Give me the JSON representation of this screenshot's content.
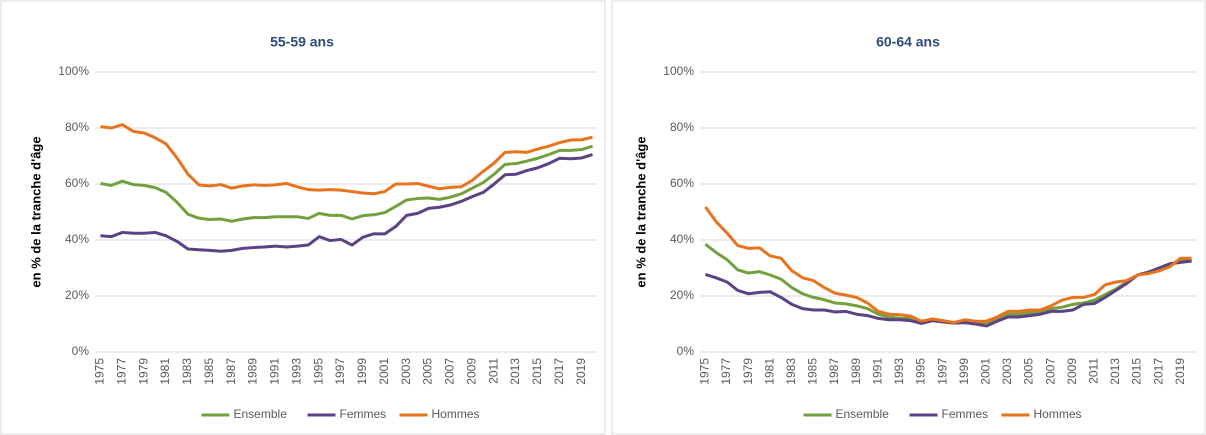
{
  "chart_data": [
    {
      "type": "line",
      "title": "55-59 ans",
      "ylabel": "en % de la tranche d'âge",
      "x": [
        1975,
        1976,
        1977,
        1978,
        1979,
        1980,
        1981,
        1982,
        1983,
        1984,
        1985,
        1986,
        1987,
        1988,
        1989,
        1990,
        1991,
        1992,
        1993,
        1994,
        1995,
        1996,
        1997,
        1998,
        1999,
        2000,
        2001,
        2002,
        2003,
        2004,
        2005,
        2006,
        2007,
        2008,
        2009,
        2010,
        2011,
        2012,
        2013,
        2014,
        2015,
        2016,
        2017,
        2018,
        2019,
        2020
      ],
      "xlim": [
        1975,
        2020
      ],
      "xticks": [
        1975,
        1977,
        1979,
        1981,
        1983,
        1985,
        1987,
        1989,
        1991,
        1993,
        1995,
        1997,
        1999,
        2001,
        2003,
        2005,
        2007,
        2009,
        2011,
        2013,
        2015,
        2017,
        2019
      ],
      "ylim": [
        0,
        100
      ],
      "yticks": [
        {
          "value": 0,
          "label": "0%"
        },
        {
          "value": 20,
          "label": "20%"
        },
        {
          "value": 40,
          "label": "40%"
        },
        {
          "value": 60,
          "label": "60%"
        },
        {
          "value": 80,
          "label": "80%"
        },
        {
          "value": 100,
          "label": "100%"
        }
      ],
      "grid": true,
      "legend": "bottom",
      "series": [
        {
          "name": "Ensemble",
          "color": "#71a03d",
          "values": [
            60.2,
            59.5,
            61,
            59.8,
            59.5,
            58.7,
            57,
            53.5,
            49.2,
            47.8,
            47.3,
            47.5,
            46.7,
            47.5,
            48,
            48,
            48.3,
            48.3,
            48.3,
            47.7,
            49.5,
            48.8,
            48.8,
            47.5,
            48.7,
            49,
            49.8,
            52,
            54.3,
            54.8,
            55,
            54.5,
            55.3,
            56.5,
            58.5,
            60.5,
            63.5,
            67,
            67.3,
            68.2,
            69.2,
            70.5,
            72,
            72,
            72.3,
            73.5
          ]
        },
        {
          "name": "Femmes",
          "color": "#5b4284",
          "values": [
            41.5,
            41.2,
            42.7,
            42.4,
            42.4,
            42.7,
            41.5,
            39.5,
            36.8,
            36.5,
            36.3,
            36,
            36.3,
            37,
            37.3,
            37.5,
            37.8,
            37.5,
            37.8,
            38.2,
            41.2,
            39.8,
            40.2,
            38.2,
            41,
            42.2,
            42.2,
            44.8,
            48.8,
            49.5,
            51.3,
            51.7,
            52.5,
            53.8,
            55.5,
            57,
            60,
            63.3,
            63.5,
            64.8,
            65.8,
            67.3,
            69.2,
            69,
            69.3,
            70.5
          ]
        },
        {
          "name": "Hommes",
          "color": "#e8731f",
          "values": [
            80.5,
            80,
            81.2,
            78.8,
            78.2,
            76.5,
            74.3,
            69.3,
            63.5,
            59.7,
            59.3,
            59.8,
            58.5,
            59.3,
            59.7,
            59.5,
            59.7,
            60.2,
            59,
            58,
            57.8,
            58,
            57.8,
            57.3,
            56.8,
            56.5,
            57.3,
            60,
            60,
            60.2,
            59.2,
            58.3,
            58.8,
            59,
            61.3,
            64.5,
            67.5,
            71.3,
            71.5,
            71.3,
            72.5,
            73.5,
            74.8,
            75.7,
            75.8,
            76.7
          ]
        }
      ]
    },
    {
      "type": "line",
      "title": "60-64 ans",
      "ylabel": "en % de la tranche d'âge",
      "x": [
        1975,
        1976,
        1977,
        1978,
        1979,
        1980,
        1981,
        1982,
        1983,
        1984,
        1985,
        1986,
        1987,
        1988,
        1989,
        1990,
        1991,
        1992,
        1993,
        1994,
        1995,
        1996,
        1997,
        1998,
        1999,
        2000,
        2001,
        2002,
        2003,
        2004,
        2005,
        2006,
        2007,
        2008,
        2009,
        2010,
        2011,
        2012,
        2013,
        2014,
        2015,
        2016,
        2017,
        2018,
        2019,
        2020
      ],
      "xlim": [
        1975,
        2020
      ],
      "xticks": [
        1975,
        1977,
        1979,
        1981,
        1983,
        1985,
        1987,
        1989,
        1991,
        1993,
        1995,
        1997,
        1999,
        2001,
        2003,
        2005,
        2007,
        2009,
        2011,
        2013,
        2015,
        2017,
        2019
      ],
      "ylim": [
        0,
        100
      ],
      "yticks": [
        {
          "value": 0,
          "label": "0%"
        },
        {
          "value": 20,
          "label": "20%"
        },
        {
          "value": 40,
          "label": "40%"
        },
        {
          "value": 60,
          "label": "60%"
        },
        {
          "value": 80,
          "label": "80%"
        },
        {
          "value": 100,
          "label": "100%"
        }
      ],
      "grid": true,
      "legend": "bottom",
      "series": [
        {
          "name": "Ensemble",
          "color": "#71a03d",
          "values": [
            38.5,
            35.5,
            33,
            29.3,
            28.2,
            28.7,
            27.5,
            26,
            23,
            20.8,
            19.5,
            18.7,
            17.5,
            17.2,
            16.5,
            15.5,
            13.5,
            12.5,
            12,
            12,
            11,
            11.5,
            11,
            10.5,
            10.5,
            10.5,
            10.5,
            12,
            13.5,
            13.5,
            14,
            14.5,
            15.5,
            16,
            17,
            17.5,
            18.5,
            20.5,
            22.5,
            25,
            27.5,
            28.5,
            30,
            31.5,
            32.5,
            33
          ]
        },
        {
          "name": "Femmes",
          "color": "#5b4284",
          "values": [
            27.7,
            26.5,
            25,
            22,
            20.8,
            21.3,
            21.5,
            19.5,
            17,
            15.5,
            15,
            15,
            14.3,
            14.5,
            13.5,
            13,
            12,
            11.5,
            11.5,
            11.2,
            10.2,
            11.2,
            10.7,
            10.3,
            10.5,
            10,
            9.3,
            11,
            12.5,
            12.5,
            13,
            13.5,
            14.5,
            14.5,
            15,
            17,
            17.3,
            19.5,
            22,
            24.5,
            27.5,
            28.5,
            30,
            31.5,
            32,
            32.5
          ]
        },
        {
          "name": "Hommes",
          "color": "#e8731f",
          "values": [
            51.8,
            46.5,
            42.5,
            38,
            37,
            37.2,
            34.3,
            33.5,
            29,
            26.5,
            25.5,
            23,
            21,
            20.3,
            19.5,
            17.5,
            14.5,
            13.5,
            13.3,
            12.8,
            11,
            11.8,
            11.2,
            10.5,
            11.5,
            11,
            11,
            12.5,
            14.5,
            14.5,
            15,
            15,
            16.5,
            18.5,
            19.5,
            19.5,
            20.5,
            24,
            25,
            25.5,
            27.5,
            28,
            29,
            30.5,
            33.5,
            33.5
          ]
        }
      ]
    }
  ]
}
